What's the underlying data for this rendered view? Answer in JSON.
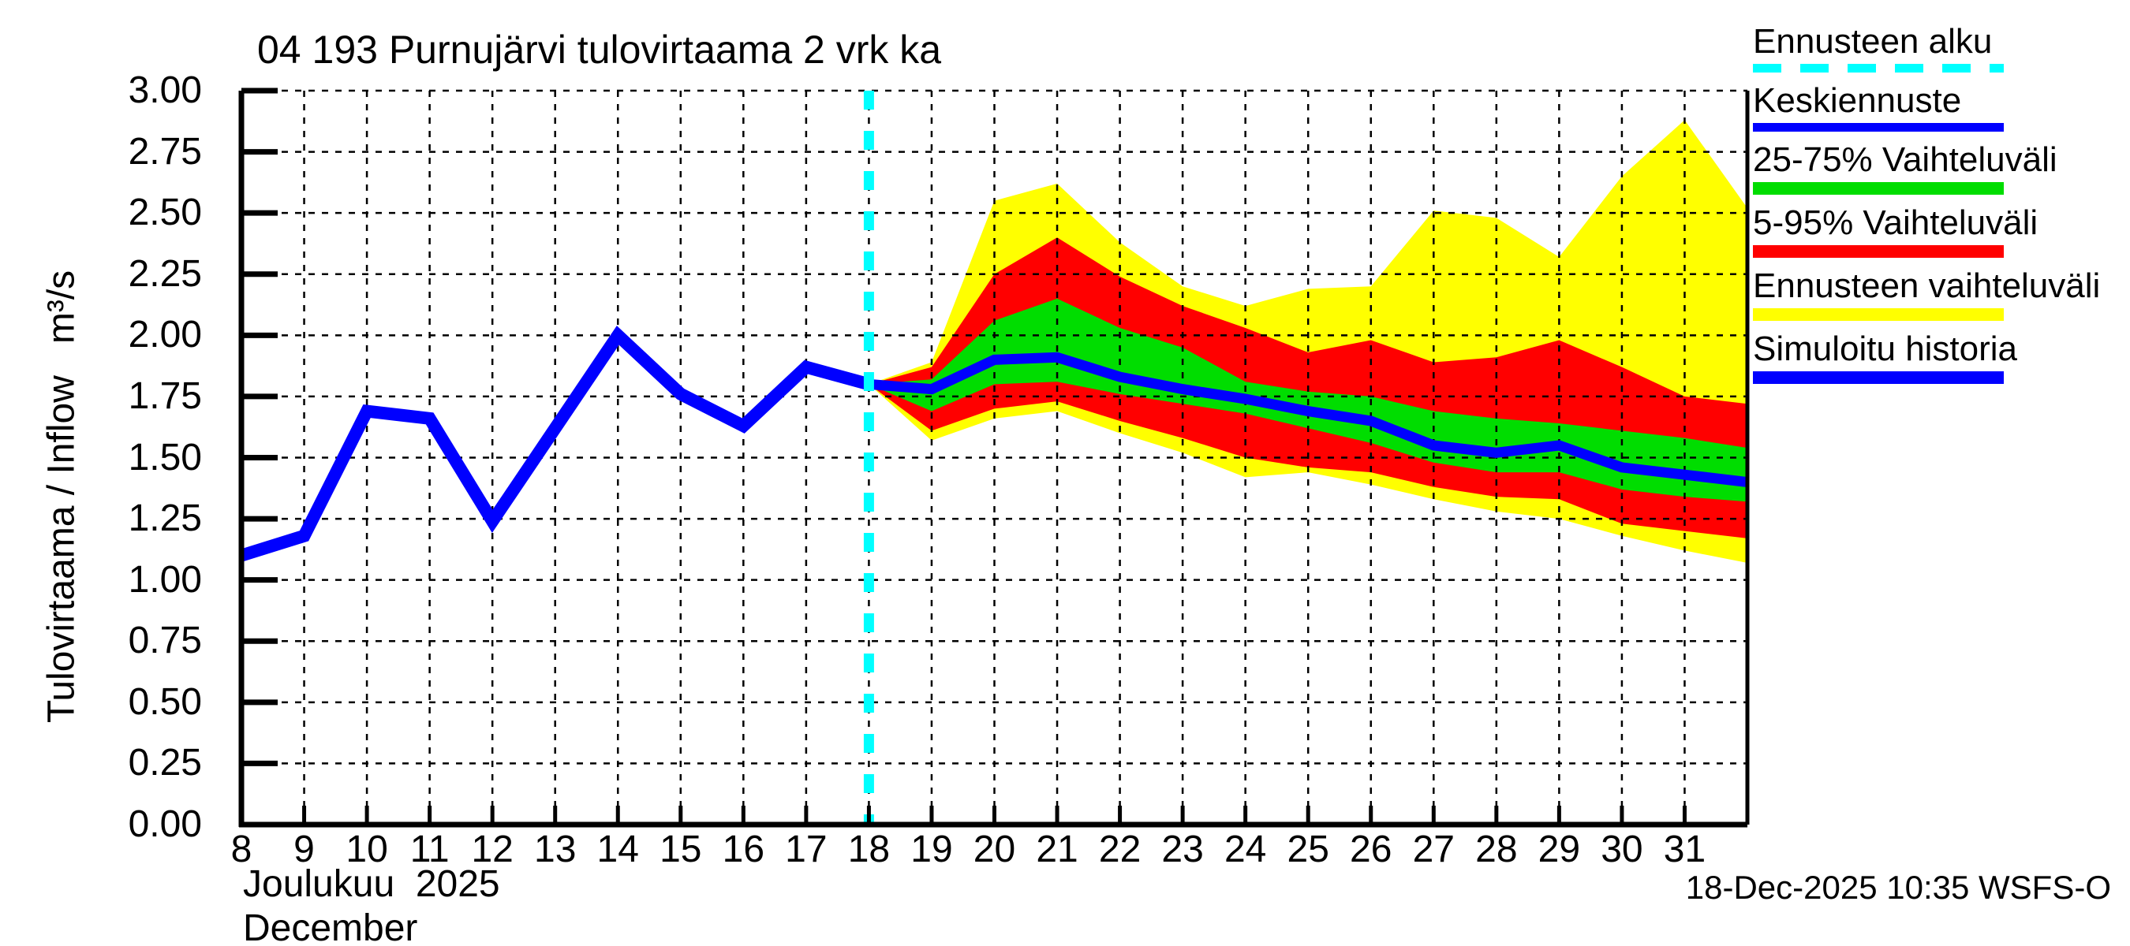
{
  "title": "04 193 Purnujärvi tulovirtaama 2 vrk ka",
  "footer": "18-Dec-2025 10:35 WSFS-O",
  "y_axis": {
    "label": "Tulovirtaama / Inflow   m³/s",
    "tick_labels": [
      "3.00",
      "2.75",
      "2.50",
      "2.25",
      "2.00",
      "1.75",
      "1.50",
      "1.25",
      "1.00",
      "0.75",
      "0.50",
      "0.25",
      "0.00"
    ]
  },
  "x_axis": {
    "tick_labels": [
      "8",
      "9",
      "10",
      "11",
      "12",
      "13",
      "14",
      "15",
      "16",
      "17",
      "18",
      "19",
      "20",
      "21",
      "22",
      "23",
      "24",
      "25",
      "26",
      "27",
      "28",
      "29",
      "30",
      "31"
    ],
    "month_line1": "Joulukuu  2025",
    "month_line2": "December"
  },
  "legend": {
    "entries": [
      {
        "label": "Ennusteen alku",
        "style": "dashed-line",
        "color": "#00ffff"
      },
      {
        "label": "Keskiennuste",
        "style": "line",
        "color": "#0000ff"
      },
      {
        "label": "25-75% Vaihteluväli",
        "style": "bar",
        "color": "#00dd00"
      },
      {
        "label": "5-95% Vaihteluväli",
        "style": "bar",
        "color": "#ff0000"
      },
      {
        "label": "Ennusteen vaihteluväli",
        "style": "bar",
        "color": "#ffff00"
      },
      {
        "label": "Simuloitu historia",
        "style": "bar",
        "color": "#0000ff"
      }
    ]
  },
  "colors": {
    "history": "#0000ff",
    "median": "#0000ff",
    "band_25_75": "#00dd00",
    "band_5_95": "#ff0000",
    "band_minmax": "#ffff00",
    "forecast_start": "#00ffff",
    "grid": "#000000",
    "axis": "#000000",
    "background": "#ffffff"
  },
  "chart_data": {
    "type": "line",
    "title": "04 193 Purnujärvi tulovirtaama 2 vrk ka",
    "xlabel": "Joulukuu 2025 / December (day of month)",
    "ylabel": "Tulovirtaama / Inflow m³/s",
    "x_range": [
      8,
      32
    ],
    "ylim": [
      0,
      3
    ],
    "y_tick_step": 0.25,
    "x_ticks": [
      8,
      9,
      10,
      11,
      12,
      13,
      14,
      15,
      16,
      17,
      18,
      19,
      20,
      21,
      22,
      23,
      24,
      25,
      26,
      27,
      28,
      29,
      30,
      31
    ],
    "grid": true,
    "legend_position": "right-outside",
    "forecast_start_x": 18,
    "bands": [
      {
        "name": "Ennusteen vaihteluväli",
        "color": "#ffff00",
        "x": [
          18,
          19,
          20,
          21,
          22,
          23,
          24,
          25,
          26,
          27,
          28,
          29,
          30,
          31,
          32
        ],
        "upper": [
          1.8,
          1.89,
          2.55,
          2.62,
          2.38,
          2.2,
          2.12,
          2.19,
          2.2,
          2.51,
          2.48,
          2.32,
          2.65,
          2.88,
          2.52
        ],
        "lower": [
          1.8,
          1.57,
          1.66,
          1.69,
          1.6,
          1.52,
          1.42,
          1.44,
          1.39,
          1.33,
          1.28,
          1.25,
          1.18,
          1.12,
          1.07
        ]
      },
      {
        "name": "5-95% Vaihteluväli",
        "color": "#ff0000",
        "x": [
          18,
          19,
          20,
          21,
          22,
          23,
          24,
          25,
          26,
          27,
          28,
          29,
          30,
          31,
          32
        ],
        "upper": [
          1.8,
          1.87,
          2.25,
          2.4,
          2.24,
          2.12,
          2.03,
          1.93,
          1.98,
          1.89,
          1.91,
          1.98,
          1.87,
          1.75,
          1.72
        ],
        "lower": [
          1.8,
          1.61,
          1.7,
          1.73,
          1.65,
          1.58,
          1.5,
          1.46,
          1.44,
          1.38,
          1.34,
          1.33,
          1.23,
          1.2,
          1.17
        ]
      },
      {
        "name": "25-75% Vaihteluväli",
        "color": "#00dd00",
        "x": [
          18,
          19,
          20,
          21,
          22,
          23,
          24,
          25,
          26,
          27,
          28,
          29,
          30,
          31,
          32
        ],
        "upper": [
          1.8,
          1.82,
          2.06,
          2.15,
          2.03,
          1.95,
          1.81,
          1.77,
          1.75,
          1.69,
          1.66,
          1.64,
          1.61,
          1.58,
          1.54
        ],
        "lower": [
          1.8,
          1.69,
          1.8,
          1.81,
          1.76,
          1.72,
          1.68,
          1.62,
          1.56,
          1.48,
          1.44,
          1.44,
          1.37,
          1.34,
          1.32
        ]
      }
    ],
    "series": [
      {
        "name": "Keskiennuste",
        "color": "#0000ff",
        "width": 13,
        "x": [
          18,
          19,
          20,
          21,
          22,
          23,
          24,
          25,
          26,
          27,
          28,
          29,
          30,
          31,
          32
        ],
        "y": [
          1.8,
          1.78,
          1.9,
          1.91,
          1.83,
          1.78,
          1.74,
          1.69,
          1.65,
          1.55,
          1.52,
          1.55,
          1.46,
          1.43,
          1.4
        ]
      },
      {
        "name": "Simuloitu historia",
        "color": "#0000ff",
        "width": 16,
        "x": [
          8,
          9,
          10,
          11,
          12,
          13,
          14,
          15,
          16,
          17,
          18
        ],
        "y": [
          1.1,
          1.18,
          1.69,
          1.66,
          1.24,
          1.62,
          2.0,
          1.76,
          1.63,
          1.87,
          1.8
        ]
      }
    ]
  }
}
